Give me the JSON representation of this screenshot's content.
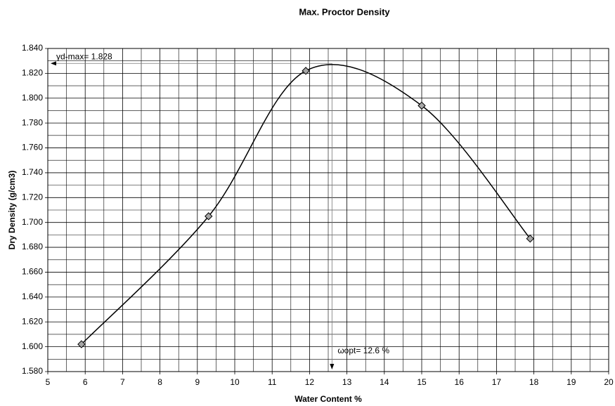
{
  "chart_data": {
    "type": "line",
    "title": "Max. Proctor Density",
    "x_label": "Water Content %",
    "y_label": "Dry Density  (g/cm3)",
    "series": [
      {
        "name": "Dry Density",
        "color": "#000000",
        "marker_color": "#a6a6a6",
        "x": [
          5.9,
          9.3,
          11.9,
          15.0,
          17.9
        ],
        "values": [
          1.602,
          1.705,
          1.822,
          1.794,
          1.687
        ]
      }
    ],
    "xlim": [
      5,
      20
    ],
    "xticks": [
      5,
      6,
      7,
      8,
      9,
      10,
      11,
      12,
      13,
      14,
      15,
      16,
      17,
      18,
      19,
      20
    ],
    "ylim": [
      1.58,
      1.84
    ],
    "yticks": [
      {
        "value": 1.58,
        "label": "1.580"
      },
      {
        "value": 1.6,
        "label": "1.600"
      },
      {
        "value": 1.62,
        "label": "1.620"
      },
      {
        "value": 1.64,
        "label": "1.640"
      },
      {
        "value": 1.66,
        "label": "1.660"
      },
      {
        "value": 1.68,
        "label": "1.680"
      },
      {
        "value": 1.7,
        "label": "1.700"
      },
      {
        "value": 1.72,
        "label": "1.720"
      },
      {
        "value": 1.74,
        "label": "1.740"
      },
      {
        "value": 1.76,
        "label": "1.760"
      },
      {
        "value": 1.78,
        "label": "1.780"
      },
      {
        "value": 1.8,
        "label": "1.800"
      },
      {
        "value": 1.82,
        "label": "1.820"
      },
      {
        "value": 1.84,
        "label": "1.840"
      }
    ],
    "grid": true,
    "minor_grid": true,
    "peak": {
      "x": 12.6,
      "y": 1.828,
      "x_label": "ωopt= 12.6 %",
      "y_label": "γd-max= 1.828"
    }
  }
}
